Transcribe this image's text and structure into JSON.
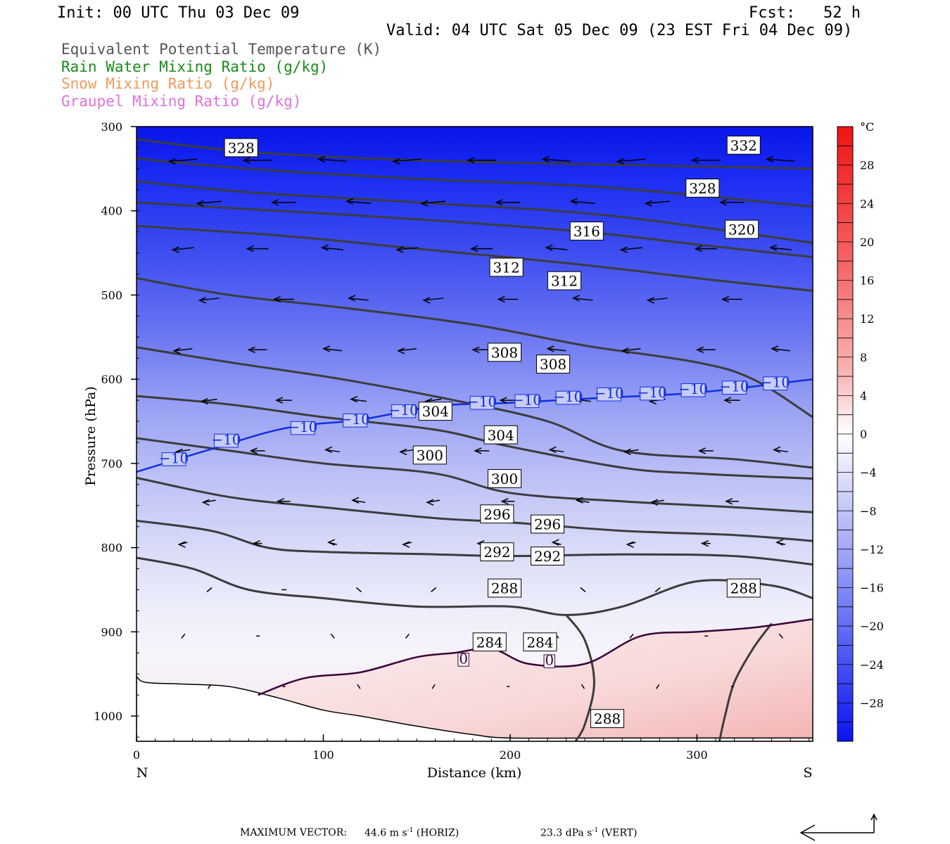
{
  "header": {
    "init": "Init: 00 UTC Thu 03 Dec 09",
    "fcst": "Fcst:   52 h",
    "valid": "Valid: 04 UTC Sat 05 Dec 09 (23 EST Fri 04 Dec 09)"
  },
  "legend": [
    {
      "label": "Equivalent Potential Temperature (K)",
      "color": "#555555"
    },
    {
      "label": "Rain Water Mixing Ratio (g/kg)",
      "color": "#1a8a1a"
    },
    {
      "label": "Snow Mixing Ratio (g/kg)",
      "color": "#f09a5a"
    },
    {
      "label": "Graupel Mixing Ratio (g/kg)",
      "color": "#e070e0"
    }
  ],
  "chart_data": {
    "type": "cross-section",
    "xlabel": "Distance (km)",
    "ylabel": "Pressure (hPa)",
    "x_ticks": [
      0,
      100,
      200,
      300
    ],
    "xlim": [
      0,
      362
    ],
    "y_ticks": [
      300,
      400,
      500,
      600,
      700,
      800,
      900,
      1000
    ],
    "ylim": [
      300,
      1030
    ],
    "y_scale": "linear-inverted",
    "left_end_label": "N",
    "right_end_label": "S",
    "colorbar": {
      "unit": "°C",
      "tick_labels": [
        "28",
        "24",
        "20",
        "16",
        "12",
        "8",
        "4",
        "0",
        "−4",
        "−8",
        "−12",
        "−16",
        "−20",
        "−24",
        "−28"
      ],
      "tick_values": [
        28,
        24,
        20,
        16,
        12,
        8,
        4,
        0,
        -4,
        -8,
        -12,
        -16,
        -20,
        -24,
        -28
      ],
      "range": [
        -32,
        32
      ]
    },
    "theta_e_contours": [
      {
        "value": 332,
        "points": [
          [
            0,
            315
          ],
          [
            60,
            330
          ],
          [
            150,
            340
          ],
          [
            250,
            345
          ],
          [
            362,
            350
          ]
        ]
      },
      {
        "value": 328,
        "points": [
          [
            0,
            338
          ],
          [
            60,
            350
          ],
          [
            150,
            362
          ],
          [
            250,
            372
          ],
          [
            362,
            395
          ]
        ]
      },
      {
        "value": 324,
        "points": [
          [
            0,
            365
          ],
          [
            60,
            378
          ],
          [
            150,
            390
          ],
          [
            250,
            405
          ],
          [
            362,
            438
          ]
        ]
      },
      {
        "value": 320,
        "points": [
          [
            0,
            390
          ],
          [
            60,
            398
          ],
          [
            150,
            410
          ],
          [
            240,
            425
          ],
          [
            300,
            440
          ],
          [
            362,
            455
          ]
        ]
      },
      {
        "value": 316,
        "points": [
          [
            0,
            418
          ],
          [
            80,
            430
          ],
          [
            150,
            445
          ],
          [
            230,
            462
          ],
          [
            300,
            480
          ],
          [
            362,
            495
          ]
        ]
      },
      {
        "value": 312,
        "points": [
          [
            0,
            480
          ],
          [
            50,
            500
          ],
          [
            110,
            515
          ],
          [
            180,
            535
          ],
          [
            240,
            560
          ],
          [
            300,
            580
          ],
          [
            330,
            600
          ],
          [
            362,
            645
          ]
        ]
      },
      {
        "value": 308,
        "points": [
          [
            0,
            562
          ],
          [
            50,
            580
          ],
          [
            110,
            600
          ],
          [
            170,
            625
          ],
          [
            220,
            650
          ],
          [
            260,
            685
          ],
          [
            320,
            695
          ],
          [
            362,
            705
          ]
        ]
      },
      {
        "value": 304,
        "points": [
          [
            0,
            620
          ],
          [
            50,
            630
          ],
          [
            100,
            645
          ],
          [
            160,
            660
          ],
          [
            200,
            680
          ],
          [
            260,
            705
          ],
          [
            300,
            712
          ],
          [
            362,
            718
          ]
        ]
      },
      {
        "value": 300,
        "points": [
          [
            0,
            670
          ],
          [
            50,
            685
          ],
          [
            100,
            700
          ],
          [
            160,
            712
          ],
          [
            200,
            735
          ],
          [
            260,
            745
          ],
          [
            320,
            752
          ],
          [
            362,
            758
          ]
        ]
      },
      {
        "value": 296,
        "points": [
          [
            0,
            717
          ],
          [
            50,
            740
          ],
          [
            100,
            752
          ],
          [
            160,
            765
          ],
          [
            200,
            770
          ],
          [
            260,
            780
          ],
          [
            320,
            785
          ],
          [
            362,
            792
          ]
        ]
      },
      {
        "value": 292,
        "points": [
          [
            0,
            768
          ],
          [
            40,
            780
          ],
          [
            70,
            800
          ],
          [
            100,
            805
          ],
          [
            160,
            808
          ],
          [
            200,
            810
          ],
          [
            260,
            808
          ],
          [
            320,
            810
          ],
          [
            362,
            820
          ]
        ]
      },
      {
        "value": 288,
        "points": [
          [
            0,
            812
          ],
          [
            30,
            825
          ],
          [
            60,
            850
          ],
          [
            100,
            860
          ],
          [
            150,
            870
          ],
          [
            200,
            870
          ],
          [
            230,
            880
          ],
          [
            260,
            870
          ],
          [
            300,
            840
          ],
          [
            340,
            845
          ],
          [
            362,
            860
          ]
        ]
      },
      {
        "value": 284,
        "points": [
          [
            230,
            880
          ],
          [
            240,
            910
          ],
          [
            245,
            960
          ],
          [
            240,
            1010
          ],
          [
            235,
            1030
          ]
        ]
      },
      {
        "value": 284,
        "points": [
          [
            340,
            890
          ],
          [
            330,
            920
          ],
          [
            320,
            960
          ],
          [
            315,
            1000
          ],
          [
            312,
            1030
          ]
        ]
      }
    ],
    "freezing_contour": {
      "value": 0,
      "points": [
        [
          65,
          975
        ],
        [
          90,
          955
        ],
        [
          120,
          948
        ],
        [
          150,
          930
        ],
        [
          170,
          925
        ],
        [
          190,
          920
        ],
        [
          210,
          938
        ],
        [
          240,
          938
        ],
        [
          270,
          905
        ],
        [
          300,
          900
        ],
        [
          330,
          895
        ],
        [
          362,
          885
        ]
      ]
    },
    "isotherm_minus10": {
      "value": -10,
      "points": [
        [
          0,
          710
        ],
        [
          40,
          683
        ],
        [
          80,
          658
        ],
        [
          120,
          648
        ],
        [
          160,
          632
        ],
        [
          200,
          628
        ],
        [
          250,
          622
        ],
        [
          300,
          616
        ],
        [
          362,
          600
        ]
      ]
    },
    "contour_labels": [
      {
        "text": "328",
        "x": 56,
        "p": 325
      },
      {
        "text": "332",
        "x": 325,
        "p": 322
      },
      {
        "text": "328",
        "x": 303,
        "p": 373
      },
      {
        "text": "316",
        "x": 241,
        "p": 424
      },
      {
        "text": "320",
        "x": 324,
        "p": 422
      },
      {
        "text": "312",
        "x": 198,
        "p": 467
      },
      {
        "text": "312",
        "x": 229,
        "p": 483
      },
      {
        "text": "308",
        "x": 197,
        "p": 568
      },
      {
        "text": "308",
        "x": 223,
        "p": 582
      },
      {
        "text": "304",
        "x": 160,
        "p": 638
      },
      {
        "text": "304",
        "x": 195,
        "p": 666
      },
      {
        "text": "300",
        "x": 157,
        "p": 690
      },
      {
        "text": "300",
        "x": 197,
        "p": 718
      },
      {
        "text": "296",
        "x": 193,
        "p": 760
      },
      {
        "text": "296",
        "x": 220,
        "p": 772
      },
      {
        "text": "292",
        "x": 193,
        "p": 805
      },
      {
        "text": "292",
        "x": 220,
        "p": 810
      },
      {
        "text": "288",
        "x": 197,
        "p": 848
      },
      {
        "text": "288",
        "x": 325,
        "p": 848
      },
      {
        "text": "284",
        "x": 189,
        "p": 912
      },
      {
        "text": "284",
        "x": 216,
        "p": 912
      },
      {
        "text": "288",
        "x": 252,
        "p": 1003
      }
    ],
    "zero_labels": [
      {
        "text": "0",
        "x": 175,
        "p": 933
      },
      {
        "text": "0",
        "x": 221,
        "p": 935
      }
    ],
    "minus10_labels": [
      {
        "text": "−10",
        "x": 20,
        "p": 695
      },
      {
        "text": "−10",
        "x": 48,
        "p": 673
      },
      {
        "text": "−10",
        "x": 89,
        "p": 658
      },
      {
        "text": "−10",
        "x": 117,
        "p": 649
      },
      {
        "text": "−10",
        "x": 143,
        "p": 638
      },
      {
        "text": "−10",
        "x": 185,
        "p": 628
      },
      {
        "text": "−10",
        "x": 209,
        "p": 626
      },
      {
        "text": "−10",
        "x": 231,
        "p": 622
      },
      {
        "text": "−10",
        "x": 253,
        "p": 618
      },
      {
        "text": "−10",
        "x": 276,
        "p": 617
      },
      {
        "text": "−10",
        "x": 298,
        "p": 613
      },
      {
        "text": "−10",
        "x": 320,
        "p": 610
      },
      {
        "text": "−10",
        "x": 342,
        "p": 605
      }
    ]
  },
  "footer": {
    "max_vector_label": "MAXIMUM VECTOR:",
    "horiz": "44.6 m s",
    "horiz_unit": "(HORIZ)",
    "vert": "23.3 dPa s",
    "vert_unit": "(VERT)",
    "exp": "-1"
  }
}
